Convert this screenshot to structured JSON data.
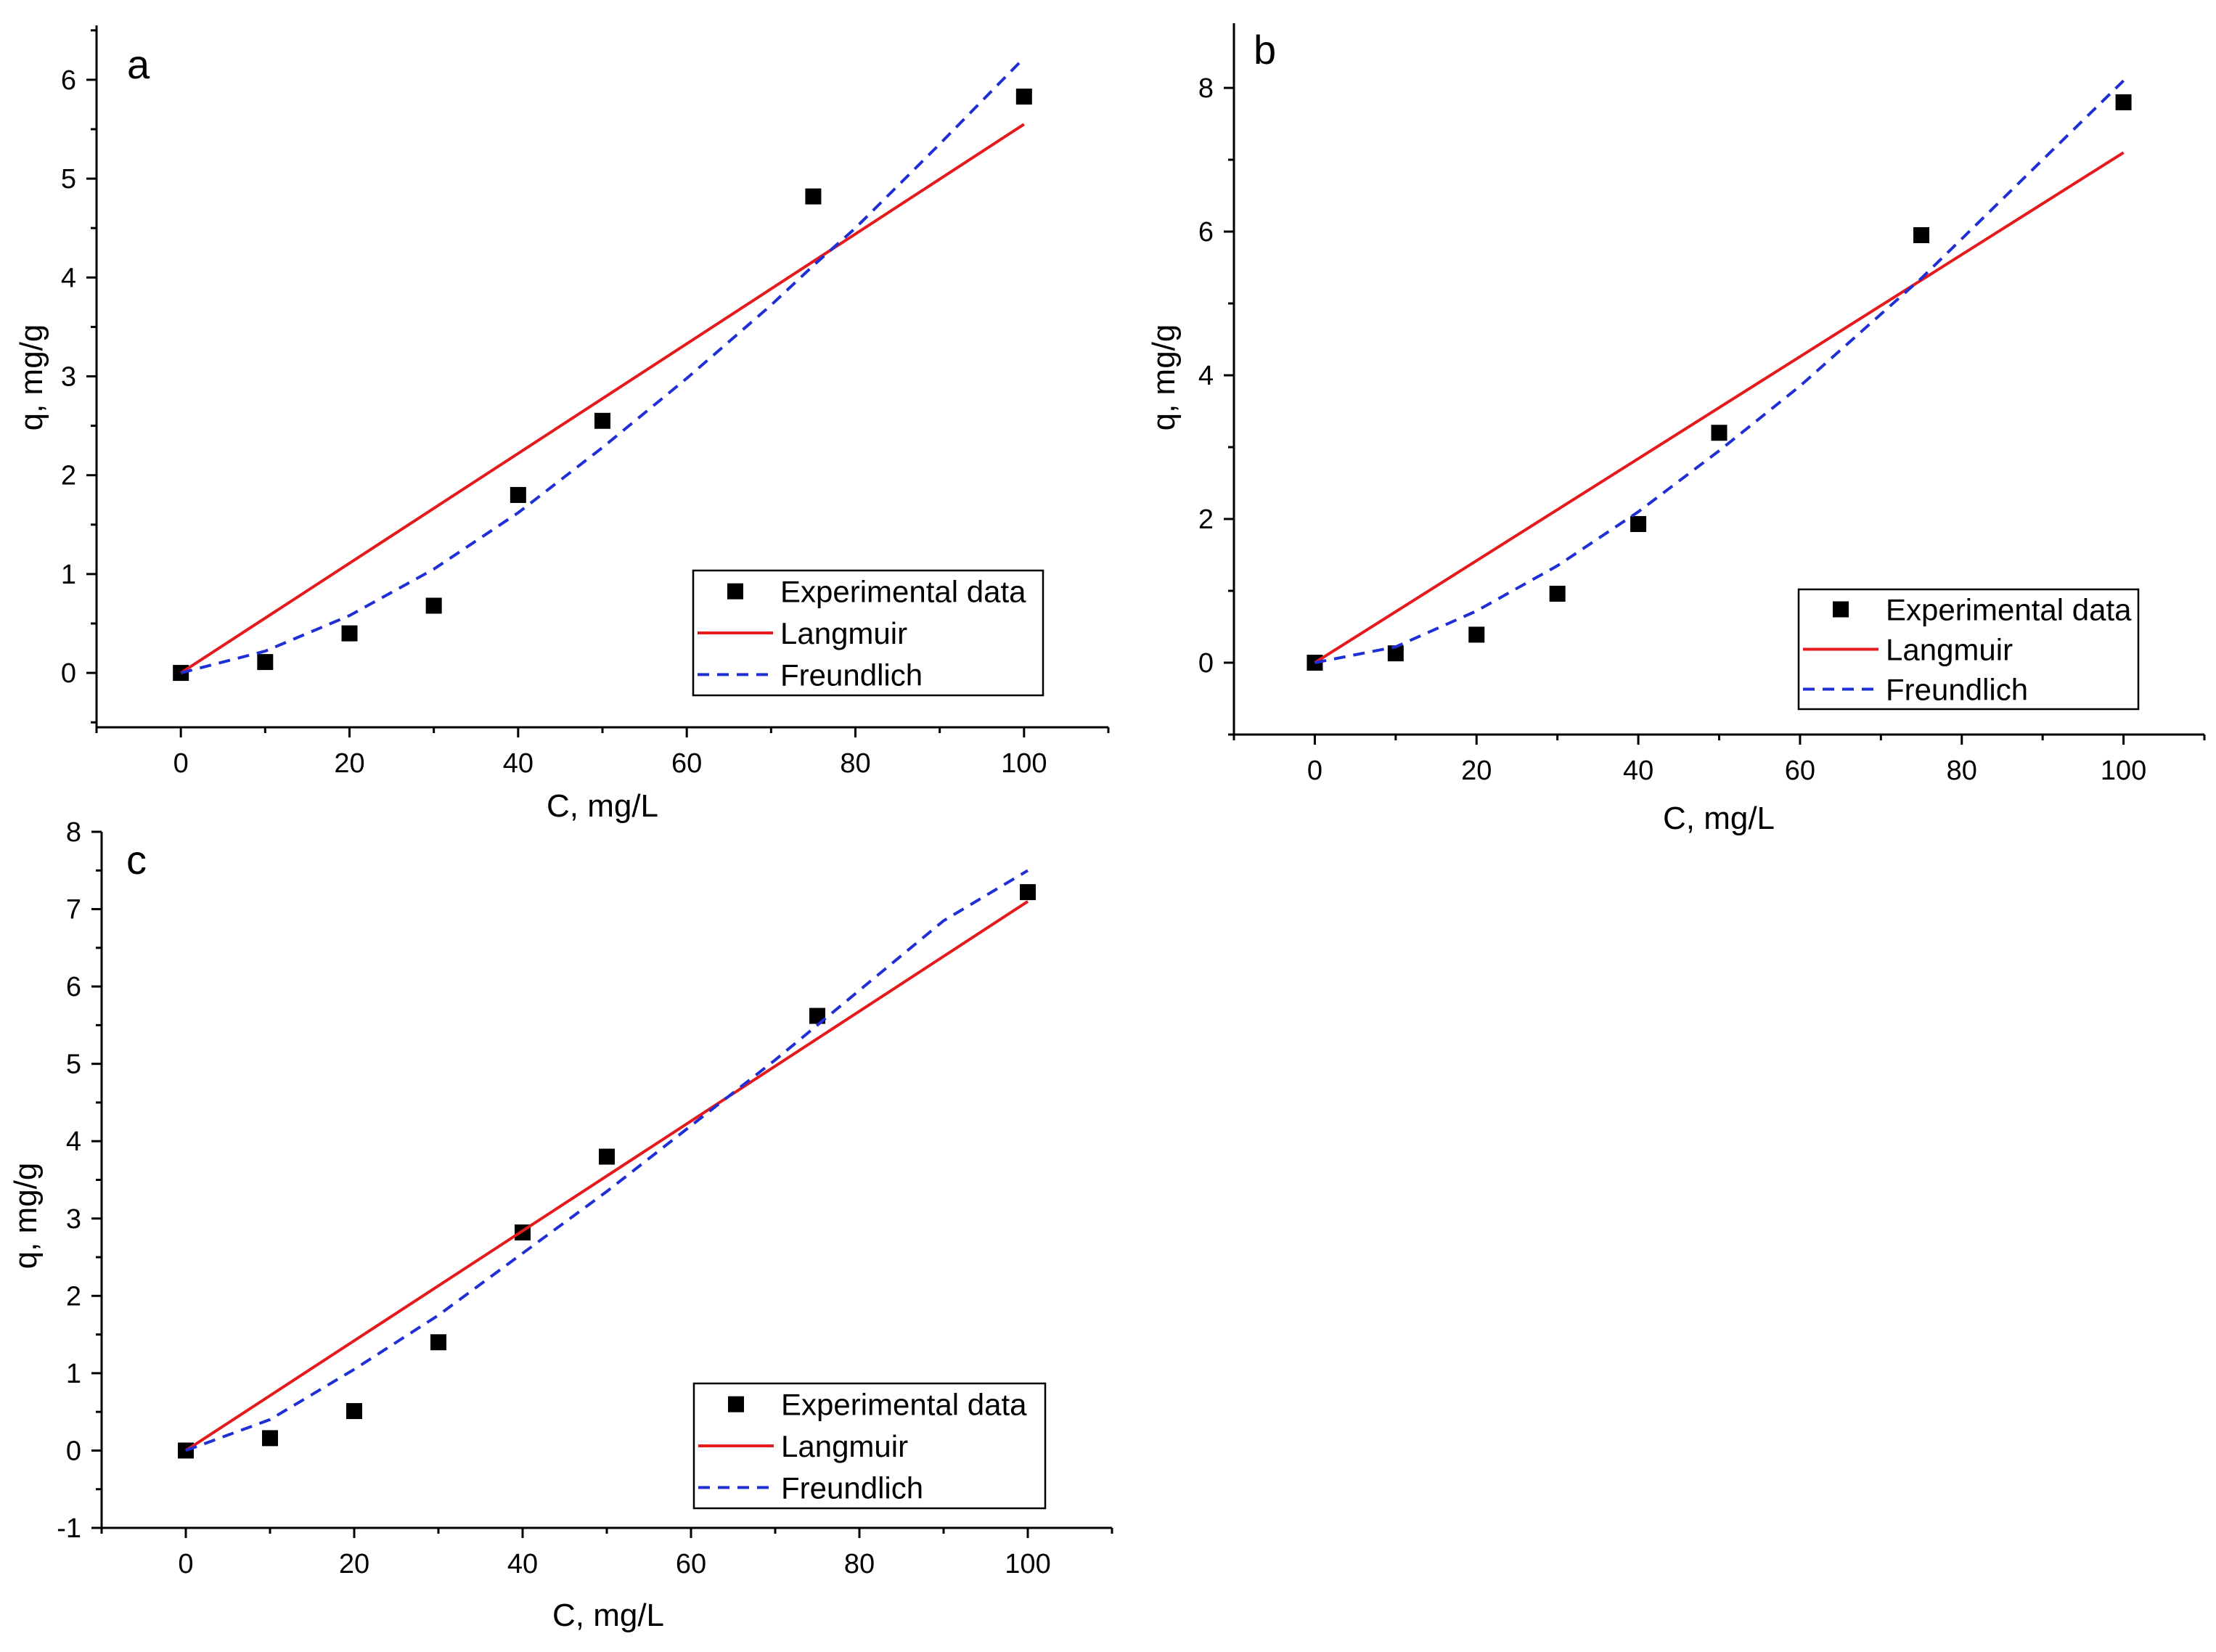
{
  "figure": {
    "panels": [
      "a",
      "b",
      "c"
    ]
  },
  "legend_labels": [
    "Experimental data",
    "Langmuir",
    "Freundlich"
  ],
  "colors": {
    "experimental": "#000000",
    "langmuir": "#e41a1c",
    "freundlich": "#1f2fd6",
    "axis": "#000000"
  },
  "chart_data": [
    {
      "panel": "a",
      "type": "scatter",
      "title": "",
      "xlabel": "C, mg/L",
      "ylabel": "q, mg/g",
      "xlim": [
        -10,
        110
      ],
      "ylim": [
        -0.55,
        6.55
      ],
      "xticks": [
        "0",
        "20",
        "40",
        "60",
        "80",
        "100"
      ],
      "yticks": [
        "0",
        "1",
        "2",
        "3",
        "4",
        "5",
        "6"
      ],
      "legend_position": "bottom-right",
      "series": [
        {
          "name": "Experimental data",
          "kind": "markers",
          "x": [
            0,
            10,
            20,
            30,
            40,
            50,
            75,
            100
          ],
          "y": [
            0,
            0.11,
            0.4,
            0.68,
            1.8,
            2.55,
            4.82,
            5.83
          ]
        },
        {
          "name": "Langmuir",
          "kind": "solid-line",
          "x": [
            0,
            100
          ],
          "y": [
            0,
            5.55
          ]
        },
        {
          "name": "Freundlich",
          "kind": "dashed-line",
          "x": [
            0,
            10,
            20,
            30,
            40,
            50,
            60,
            70,
            75,
            80,
            90,
            100
          ],
          "y": [
            0,
            0.22,
            0.58,
            1.05,
            1.62,
            2.28,
            2.98,
            3.72,
            4.12,
            4.5,
            5.35,
            6.22
          ]
        }
      ]
    },
    {
      "panel": "b",
      "type": "scatter",
      "title": "",
      "xlabel": "C, mg/L",
      "ylabel": "q, mg/g",
      "xlim": [
        -10,
        110
      ],
      "ylim": [
        -1,
        8.9
      ],
      "xticks": [
        "0",
        "20",
        "40",
        "60",
        "80",
        "100"
      ],
      "yticks": [
        "0",
        "2",
        "4",
        "6",
        "8"
      ],
      "legend_position": "bottom-right",
      "series": [
        {
          "name": "Experimental data",
          "kind": "markers",
          "x": [
            0,
            10,
            20,
            30,
            40,
            50,
            75,
            100
          ],
          "y": [
            0,
            0.13,
            0.39,
            0.96,
            1.93,
            3.2,
            5.95,
            7.8
          ]
        },
        {
          "name": "Langmuir",
          "kind": "solid-line",
          "x": [
            0,
            100
          ],
          "y": [
            0,
            7.1
          ]
        },
        {
          "name": "Freundlich",
          "kind": "dashed-line",
          "x": [
            0,
            10,
            20,
            30,
            40,
            50,
            60,
            70,
            75,
            80,
            90,
            100
          ],
          "y": [
            0,
            0.22,
            0.72,
            1.35,
            2.1,
            2.95,
            3.85,
            4.85,
            5.35,
            5.9,
            7.0,
            8.1
          ]
        }
      ]
    },
    {
      "panel": "c",
      "type": "scatter",
      "title": "",
      "xlabel": "C, mg/L",
      "ylabel": "q, mg/g",
      "xlim": [
        -10,
        110
      ],
      "ylim": [
        -1,
        8
      ],
      "xticks": [
        "0",
        "20",
        "40",
        "60",
        "80",
        "100"
      ],
      "yticks": [
        "-1",
        "0",
        "1",
        "2",
        "3",
        "4",
        "5",
        "6",
        "7",
        "8"
      ],
      "legend_position": "bottom-right",
      "series": [
        {
          "name": "Experimental data",
          "kind": "markers",
          "x": [
            0,
            10,
            20,
            30,
            40,
            50,
            75,
            100
          ],
          "y": [
            0,
            0.16,
            0.51,
            1.4,
            2.82,
            3.8,
            5.62,
            7.22
          ]
        },
        {
          "name": "Langmuir",
          "kind": "solid-line",
          "x": [
            0,
            100
          ],
          "y": [
            0,
            7.1
          ]
        },
        {
          "name": "Freundlich",
          "kind": "dashed-line",
          "x": [
            0,
            10,
            20,
            30,
            40,
            50,
            60,
            70,
            75,
            80,
            90,
            100
          ],
          "y": [
            0,
            0.4,
            1.05,
            1.75,
            2.55,
            3.35,
            4.2,
            5.05,
            5.5,
            5.95,
            6.85,
            7.5
          ]
        }
      ]
    }
  ]
}
